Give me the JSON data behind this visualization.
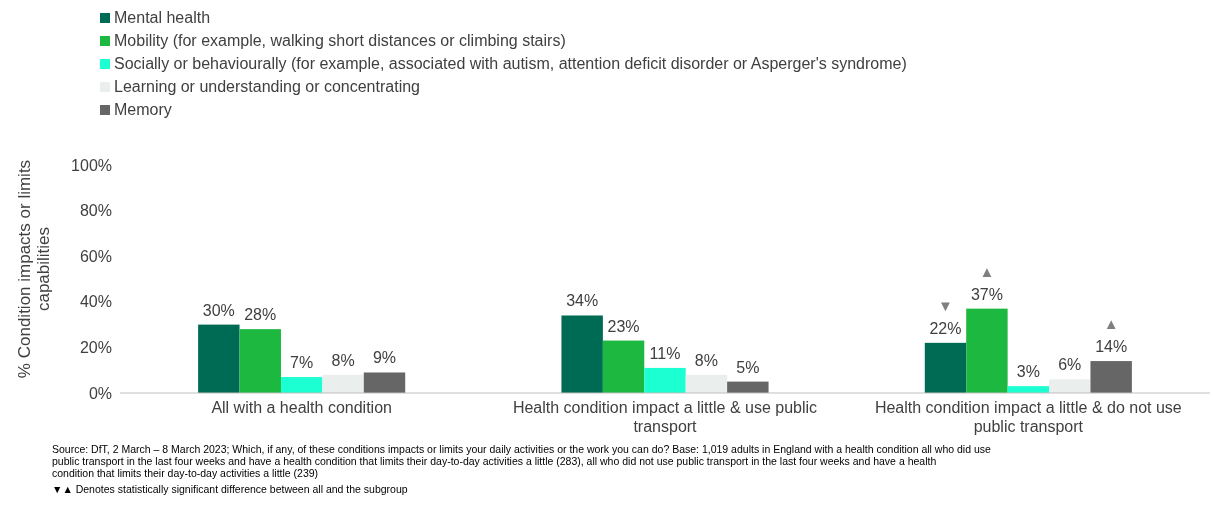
{
  "chart_data": {
    "type": "bar",
    "ylabel": "% Condition impacts or limits capabilities",
    "categories": [
      "All with a health condition",
      "Health condition impact a little & use public transport",
      "Health condition impact a little & do not use public transport"
    ],
    "series": [
      {
        "name": "Mental health",
        "color": "#006b54",
        "values": [
          30,
          34,
          22
        ],
        "value_labels": [
          "30%",
          "34%",
          "22%"
        ]
      },
      {
        "name": "Mobility (for example, walking short distances or climbing stairs)",
        "color": "#1db83f",
        "values": [
          28,
          23,
          37
        ],
        "value_labels": [
          "28%",
          "23%",
          "37%"
        ]
      },
      {
        "name": "Socially or behaviourally (for example, associated with autism, attention deficit disorder or Asperger's syndrome)",
        "color": "#1cffd2",
        "values": [
          7,
          11,
          3
        ],
        "value_labels": [
          "7%",
          "11%",
          "3%"
        ]
      },
      {
        "name": "Learning or understanding or concentrating",
        "color": "#eaeeed",
        "values": [
          8,
          8,
          6
        ],
        "value_labels": [
          "8%",
          "8%",
          "6%"
        ]
      },
      {
        "name": "Memory",
        "color": "#666666",
        "values": [
          9,
          5,
          14
        ],
        "value_labels": [
          "9%",
          "5%",
          "14%"
        ]
      }
    ],
    "ylim": [
      0,
      100
    ],
    "yticks": [
      {
        "value": 0,
        "label": "0%"
      },
      {
        "value": 20,
        "label": "20%"
      },
      {
        "value": 40,
        "label": "40%"
      },
      {
        "value": 60,
        "label": "60%"
      },
      {
        "value": 80,
        "label": "80%"
      },
      {
        "value": 100,
        "label": "100%"
      }
    ],
    "grid": false,
    "legend": "top left",
    "annotations": [
      "▼",
      "▲",
      "▲",
      "Source: DfT, 2 March – 8 March 2023; Which, if any, of these conditions impacts or limits your daily activities or the work you can do? Base: 1,019 adults in England with a health condition all who did use public transport in the last four weeks and have a health condition that limits their day-to-day activities a little (283), all who did not use public transport in the last four weeks and have a health condition that limits their day-to-day activities a little (239)",
      "▼▲ Denotes statistically significant difference between all and the subgroup"
    ]
  }
}
